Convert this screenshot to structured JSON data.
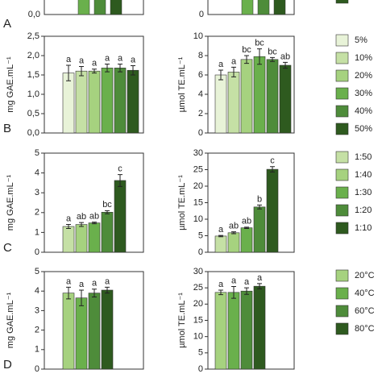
{
  "panel_a": {
    "label": "A",
    "left_tick": {
      "value": 0,
      "label": "0,0"
    },
    "right_tick": 0
  },
  "chart_data": [
    {
      "type": "bar",
      "panel": "B",
      "ylabel": "mg GAE.mL⁻¹",
      "ylim": [
        0,
        2.5
      ],
      "yticks": [
        {
          "value": 0,
          "label": "0,0"
        },
        {
          "value": 0.5,
          "label": "0,5"
        },
        {
          "value": 1,
          "label": "1,0"
        },
        {
          "value": 1.5,
          "label": "1,5"
        },
        {
          "value": 2,
          "label": "2,0"
        },
        {
          "value": 2.5,
          "label": "2,5"
        }
      ],
      "values": [
        1.55,
        1.6,
        1.6,
        1.68,
        1.68,
        1.62
      ],
      "errors": [
        0.2,
        0.12,
        0.05,
        0.1,
        0.1,
        0.12
      ],
      "letters": [
        "a",
        "a",
        "a",
        "a",
        "a",
        "a"
      ],
      "colors": [
        "#e8f3d8",
        "#c5e0a5",
        "#a6d27f",
        "#6ab04c",
        "#4e8c3a",
        "#2e5a1f"
      ]
    },
    {
      "type": "bar",
      "ylabel": "µmol TE.mL⁻¹",
      "ylim": [
        0,
        10
      ],
      "yticks": [
        0,
        2,
        4,
        6,
        8,
        10
      ],
      "values": [
        6.0,
        6.3,
        7.6,
        7.9,
        7.6,
        7.0
      ],
      "errors": [
        0.5,
        0.5,
        0.4,
        0.8,
        0.2,
        0.3
      ],
      "letters": [
        "a",
        "a",
        "bc",
        "bc",
        "bc",
        "ab"
      ],
      "colors": [
        "#e8f3d8",
        "#c5e0a5",
        "#a6d27f",
        "#6ab04c",
        "#4e8c3a",
        "#2e5a1f"
      ],
      "legend": [
        "5%",
        "10%",
        "20%",
        "30%",
        "40%",
        "50%"
      ]
    },
    {
      "type": "bar",
      "panel": "C",
      "ylabel": "mg GAE.mL⁻¹",
      "ylim": [
        0,
        5
      ],
      "yticks": [
        0,
        1,
        2,
        3,
        4,
        5
      ],
      "values": [
        1.3,
        1.4,
        1.48,
        2.02,
        3.62
      ],
      "errors": [
        0.1,
        0.1,
        0.04,
        0.08,
        0.3
      ],
      "letters": [
        "a",
        "ab",
        "ab",
        "bc",
        "c"
      ],
      "colors": [
        "#c5e0a5",
        "#a6d27f",
        "#6ab04c",
        "#4e8c3a",
        "#2e5a1f"
      ]
    },
    {
      "type": "bar",
      "ylabel": "µmol TE.mL⁻¹",
      "ylim": [
        0,
        30
      ],
      "yticks": [
        0,
        5,
        10,
        15,
        20,
        25,
        30
      ],
      "values": [
        4.9,
        5.9,
        7.4,
        13.7,
        25.1
      ],
      "errors": [
        0.2,
        0.3,
        0.2,
        0.6,
        0.8
      ],
      "letters": [
        "a",
        "ab",
        "ab",
        "b",
        "c"
      ],
      "colors": [
        "#c5e0a5",
        "#a6d27f",
        "#6ab04c",
        "#4e8c3a",
        "#2e5a1f"
      ],
      "legend": [
        "1:50",
        "1:40",
        "1:30",
        "1:20",
        "1:10"
      ]
    },
    {
      "type": "bar",
      "panel": "D",
      "ylabel": "mg GAE.mL⁻¹",
      "ylim": [
        0,
        5
      ],
      "yticks": [
        0,
        1,
        2,
        3,
        4,
        5
      ],
      "values": [
        3.9,
        3.65,
        3.9,
        4.05
      ],
      "errors": [
        0.3,
        0.4,
        0.2,
        0.15
      ],
      "letters": [
        "a",
        "a",
        "a",
        "a"
      ],
      "colors": [
        "#a6d27f",
        "#6ab04c",
        "#4e8c3a",
        "#2e5a1f"
      ]
    },
    {
      "type": "bar",
      "ylabel": "µmol TE.mL⁻¹",
      "ylim": [
        0,
        30
      ],
      "yticks": [
        0,
        5,
        10,
        15,
        20,
        25,
        30
      ],
      "values": [
        23.6,
        23.6,
        24.0,
        25.5
      ],
      "errors": [
        0.7,
        1.8,
        1.0,
        0.8
      ],
      "letters": [
        "a",
        "a",
        "a",
        "a"
      ],
      "colors": [
        "#a6d27f",
        "#6ab04c",
        "#4e8c3a",
        "#2e5a1f"
      ],
      "legend": [
        "20°C",
        "40°C",
        "60°C",
        "80°C"
      ]
    }
  ]
}
